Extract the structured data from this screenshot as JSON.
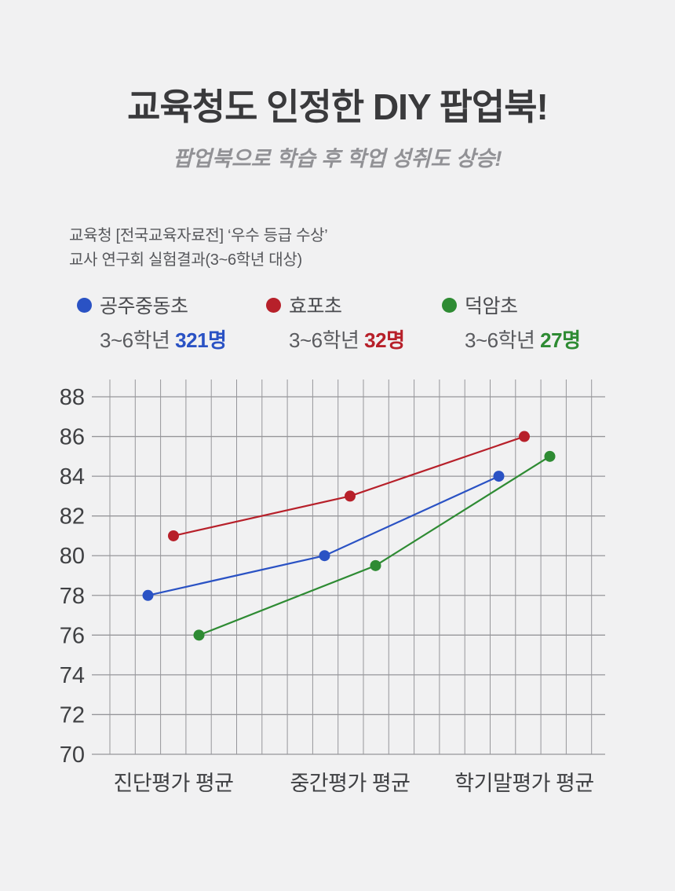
{
  "page": {
    "background": "#f1f1f2"
  },
  "header": {
    "title": "교육청도 인정한 DIY 팝업북!",
    "subtitle": "팝업북으로 학습 후 학업 성취도 상승!"
  },
  "info": {
    "line1": "교육청 [전국교육자료전] ‘우수 등급 수상’",
    "line2": "교사 연구회 실험결과(3~6학년 대상)"
  },
  "legend": {
    "items": [
      {
        "name": "공주중동초",
        "count_prefix": "3~6학년 ",
        "count_value": "321명",
        "color": "#2a52c4"
      },
      {
        "name": "효포초",
        "count_prefix": "3~6학년 ",
        "count_value": "32명",
        "color": "#b7202a"
      },
      {
        "name": "덕암초",
        "count_prefix": "3~6학년 ",
        "count_value": "27명",
        "color": "#2e8b33"
      }
    ]
  },
  "chart_data": {
    "type": "line",
    "title": "",
    "xlabel": "",
    "ylabel": "",
    "categories": [
      "진단평가 평균",
      "중간평가 평균",
      "학기말평가 평균"
    ],
    "series": [
      {
        "name": "공주중동초",
        "color": "#2a52c4",
        "values": [
          78,
          80,
          84
        ]
      },
      {
        "name": "효포초",
        "color": "#b7202a",
        "values": [
          81,
          83,
          86
        ]
      },
      {
        "name": "덕암초",
        "color": "#2e8b33",
        "values": [
          76,
          79.5,
          85
        ]
      }
    ],
    "ylim": [
      70,
      88
    ],
    "ytick_step": 2,
    "grid": "both",
    "grid_color": "#96969a",
    "tick_color": "#3f4043",
    "legend_position": "top"
  }
}
